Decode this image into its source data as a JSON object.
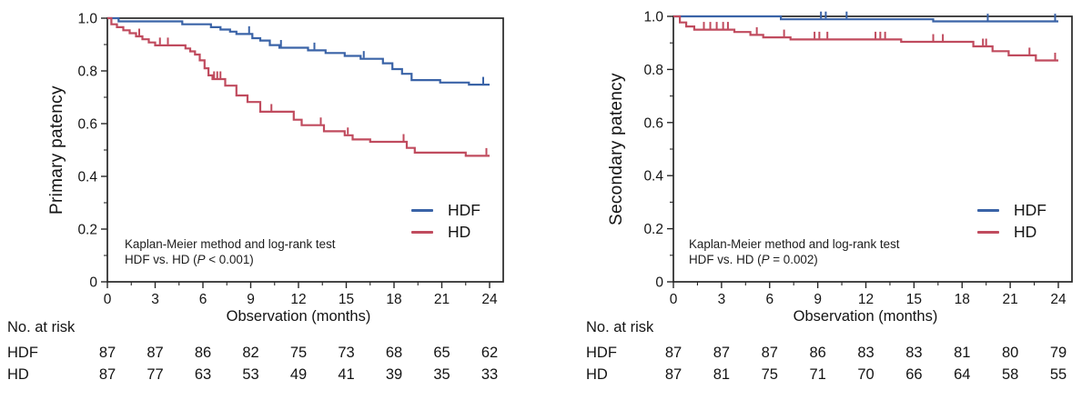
{
  "colors": {
    "hdf": "#3a63a7",
    "hd": "#c04b5e",
    "axis": "#262626",
    "text": "#141414"
  },
  "chart_data": [
    {
      "type": "line",
      "km_style": "step",
      "ylabel": "Primary patency",
      "xlabel": "Observation (months)",
      "xlim": [
        0,
        24
      ],
      "ylim": [
        0,
        1.0
      ],
      "xtick_values": [
        0,
        3,
        6,
        9,
        12,
        15,
        18,
        21,
        24
      ],
      "xtick_labels": [
        "0",
        "3",
        "6",
        "9",
        "12",
        "15",
        "18",
        "21",
        "24"
      ],
      "ytick_values": [
        0,
        0.2,
        0.4,
        0.6,
        0.8,
        1.0
      ],
      "ytick_labels": [
        "0",
        "0.2",
        "0.4",
        "0.6",
        "0.8",
        "1.0"
      ],
      "minor_xtick_step": 1.5,
      "minor_ytick_step": 0.1,
      "grid": false,
      "legend_position": "lower-right",
      "legend": [
        {
          "name": "HDF",
          "color": "#3a63a7"
        },
        {
          "name": "HD",
          "color": "#c04b5e"
        }
      ],
      "annotation": {
        "line1": "Kaplan-Meier method and log-rank test",
        "line2_pre": "HDF vs. HD (",
        "line2_italic": "P",
        "line2_post": " < 0.001)"
      },
      "series": [
        {
          "name": "HDF",
          "color": "#3a63a7",
          "steps": [
            [
              0,
              1.0
            ],
            [
              0.7,
              0.988
            ],
            [
              4.7,
              0.977
            ],
            [
              6.5,
              0.966
            ],
            [
              7.1,
              0.957
            ],
            [
              7.7,
              0.949
            ],
            [
              8.1,
              0.94
            ],
            [
              9.1,
              0.924
            ],
            [
              9.6,
              0.915
            ],
            [
              10.2,
              0.898
            ],
            [
              10.8,
              0.888
            ],
            [
              12.6,
              0.878
            ],
            [
              13.7,
              0.868
            ],
            [
              14.9,
              0.857
            ],
            [
              15.9,
              0.846
            ],
            [
              17.3,
              0.829
            ],
            [
              17.9,
              0.807
            ],
            [
              18.5,
              0.789
            ],
            [
              19.1,
              0.765
            ],
            [
              20.9,
              0.756
            ],
            [
              22.7,
              0.748
            ],
            [
              24,
              0.748
            ]
          ],
          "censor_marks": [
            [
              8.9,
              0.94
            ],
            [
              10.9,
              0.888
            ],
            [
              13.0,
              0.878
            ],
            [
              16.1,
              0.846
            ],
            [
              23.6,
              0.748
            ]
          ]
        },
        {
          "name": "HD",
          "color": "#c04b5e",
          "steps": [
            [
              0,
              1.0
            ],
            [
              0.25,
              0.977
            ],
            [
              0.6,
              0.966
            ],
            [
              1.0,
              0.954
            ],
            [
              1.4,
              0.943
            ],
            [
              1.8,
              0.931
            ],
            [
              2.2,
              0.92
            ],
            [
              2.6,
              0.908
            ],
            [
              3.0,
              0.897
            ],
            [
              4.9,
              0.885
            ],
            [
              5.2,
              0.874
            ],
            [
              5.5,
              0.862
            ],
            [
              5.8,
              0.84
            ],
            [
              6.1,
              0.81
            ],
            [
              6.35,
              0.783
            ],
            [
              6.6,
              0.769
            ],
            [
              7.4,
              0.744
            ],
            [
              8.1,
              0.707
            ],
            [
              8.8,
              0.682
            ],
            [
              9.6,
              0.645
            ],
            [
              11.7,
              0.615
            ],
            [
              12.2,
              0.594
            ],
            [
              13.6,
              0.571
            ],
            [
              14.9,
              0.556
            ],
            [
              15.4,
              0.54
            ],
            [
              16.5,
              0.531
            ],
            [
              18.8,
              0.508
            ],
            [
              19.3,
              0.49
            ],
            [
              22.5,
              0.478
            ],
            [
              24,
              0.478
            ]
          ],
          "censor_marks": [
            [
              2.0,
              0.931
            ],
            [
              3.3,
              0.897
            ],
            [
              3.8,
              0.897
            ],
            [
              6.7,
              0.769
            ],
            [
              6.9,
              0.769
            ],
            [
              7.1,
              0.769
            ],
            [
              10.3,
              0.645
            ],
            [
              13.4,
              0.594
            ],
            [
              15.1,
              0.556
            ],
            [
              18.6,
              0.531
            ],
            [
              23.8,
              0.478
            ]
          ]
        }
      ],
      "risk_table": {
        "title": "No. at risk",
        "timepoints": [
          0,
          3,
          6,
          9,
          12,
          15,
          18,
          21,
          24
        ],
        "rows": [
          {
            "label": "HDF",
            "counts": [
              87,
              87,
              86,
              82,
              75,
              73,
              68,
              65,
              62
            ]
          },
          {
            "label": "HD",
            "counts": [
              87,
              77,
              63,
              53,
              49,
              41,
              39,
              35,
              33
            ]
          }
        ]
      }
    },
    {
      "type": "line",
      "km_style": "step",
      "ylabel": "Secondary patency",
      "xlabel": "Observation (months)",
      "xlim": [
        0,
        24
      ],
      "ylim": [
        0,
        1.0
      ],
      "xtick_values": [
        0,
        3,
        6,
        9,
        12,
        15,
        18,
        21,
        24
      ],
      "xtick_labels": [
        "0",
        "3",
        "6",
        "9",
        "12",
        "15",
        "18",
        "21",
        "24"
      ],
      "ytick_values": [
        0,
        0.2,
        0.4,
        0.6,
        0.8,
        1.0
      ],
      "ytick_labels": [
        "0",
        "0.2",
        "0.4",
        "0.6",
        "0.8",
        "1.0"
      ],
      "minor_xtick_step": 1.5,
      "minor_ytick_step": 0.1,
      "grid": false,
      "legend_position": "lower-right",
      "legend": [
        {
          "name": "HDF",
          "color": "#3a63a7"
        },
        {
          "name": "HD",
          "color": "#c04b5e"
        }
      ],
      "annotation": {
        "line1": "Kaplan-Meier method and log-rank test",
        "line2_pre": "HDF vs. HD (",
        "line2_italic": "P",
        "line2_post": " = 0.002)"
      },
      "series": [
        {
          "name": "HDF",
          "color": "#3a63a7",
          "steps": [
            [
              0,
              1.0
            ],
            [
              6.7,
              0.989
            ],
            [
              16.2,
              0.981
            ],
            [
              24,
              0.981
            ]
          ],
          "censor_marks": [
            [
              9.2,
              0.989
            ],
            [
              9.5,
              0.989
            ],
            [
              10.8,
              0.989
            ],
            [
              19.6,
              0.981
            ],
            [
              23.8,
              0.981
            ]
          ]
        },
        {
          "name": "HD",
          "color": "#c04b5e",
          "steps": [
            [
              0,
              1.0
            ],
            [
              0.4,
              0.977
            ],
            [
              0.8,
              0.962
            ],
            [
              1.3,
              0.95
            ],
            [
              3.8,
              0.941
            ],
            [
              4.8,
              0.93
            ],
            [
              5.6,
              0.921
            ],
            [
              7.3,
              0.913
            ],
            [
              14.2,
              0.904
            ],
            [
              18.7,
              0.887
            ],
            [
              19.9,
              0.869
            ],
            [
              20.9,
              0.853
            ],
            [
              22.6,
              0.834
            ],
            [
              24,
              0.834
            ]
          ],
          "censor_marks": [
            [
              1.9,
              0.95
            ],
            [
              2.3,
              0.95
            ],
            [
              2.7,
              0.95
            ],
            [
              3.1,
              0.95
            ],
            [
              3.4,
              0.95
            ],
            [
              5.2,
              0.93
            ],
            [
              6.9,
              0.921
            ],
            [
              8.8,
              0.913
            ],
            [
              9.1,
              0.913
            ],
            [
              9.6,
              0.913
            ],
            [
              12.6,
              0.913
            ],
            [
              12.9,
              0.913
            ],
            [
              13.2,
              0.913
            ],
            [
              16.2,
              0.904
            ],
            [
              16.8,
              0.904
            ],
            [
              19.3,
              0.887
            ],
            [
              19.5,
              0.887
            ],
            [
              22.2,
              0.853
            ],
            [
              23.8,
              0.834
            ]
          ]
        }
      ],
      "risk_table": {
        "title": "No. at risk",
        "timepoints": [
          0,
          3,
          6,
          9,
          12,
          15,
          18,
          21,
          24
        ],
        "rows": [
          {
            "label": "HDF",
            "counts": [
              87,
              87,
              87,
              86,
              83,
              83,
              81,
              80,
              79
            ]
          },
          {
            "label": "HD",
            "counts": [
              87,
              81,
              75,
              71,
              70,
              66,
              64,
              58,
              55
            ]
          }
        ]
      }
    }
  ]
}
